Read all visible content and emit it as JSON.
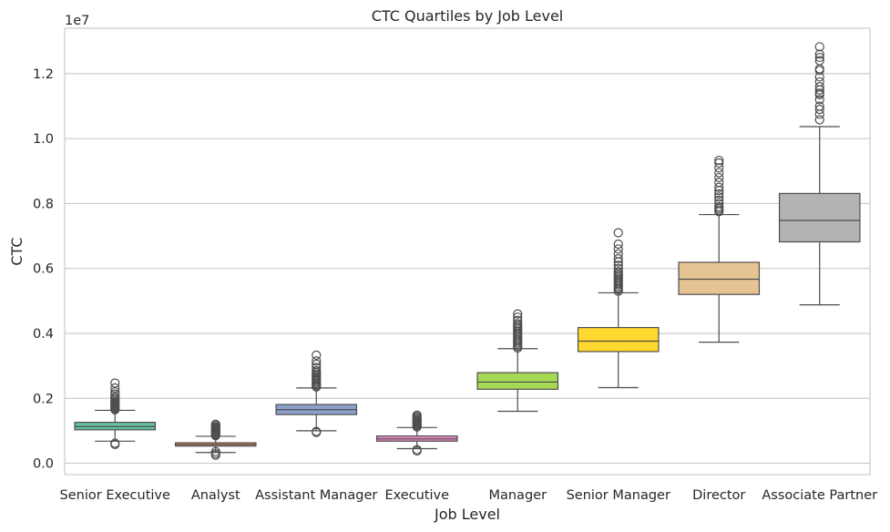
{
  "chart_data": {
    "type": "box",
    "title": "CTC Quartiles by Job Level",
    "xlabel": "Job Level",
    "ylabel": "CTC",
    "y_offset_label": "1e7",
    "y_scale_factor": 10000000,
    "ylim": [
      -0.035,
      1.34
    ],
    "yticks": [
      0.0,
      0.2,
      0.4,
      0.6,
      0.8,
      1.0,
      1.2
    ],
    "ytick_labels": [
      "0.0",
      "0.2",
      "0.4",
      "0.6",
      "0.8",
      "1.0",
      "1.2"
    ],
    "grid": "horizontal",
    "categories": [
      "Senior Executive",
      "Analyst",
      "Assistant Manager",
      "Executive",
      "Manager",
      "Senior Manager",
      "Director",
      "Associate Partner"
    ],
    "boxes": [
      {
        "category": "Senior Executive",
        "color": "#66c2a5",
        "whisker_low": 0.068,
        "q1": 0.103,
        "median": 0.113,
        "q3": 0.126,
        "whisker_high": 0.163,
        "outliers": [
          0.058,
          0.062,
          0.165,
          0.168,
          0.171,
          0.174,
          0.177,
          0.18,
          0.183,
          0.186,
          0.19,
          0.195,
          0.2,
          0.205,
          0.213,
          0.22,
          0.232,
          0.247
        ]
      },
      {
        "category": "Analyst",
        "color": "#fc8d62",
        "whisker_low": 0.033,
        "q1": 0.053,
        "median": 0.058,
        "q3": 0.063,
        "whisker_high": 0.083,
        "outliers": [
          0.025,
          0.03,
          0.036,
          0.085,
          0.088,
          0.091,
          0.094,
          0.097,
          0.1,
          0.103,
          0.106,
          0.109,
          0.112,
          0.116,
          0.12
        ]
      },
      {
        "category": "Assistant Manager",
        "color": "#8da0cb",
        "whisker_low": 0.1,
        "q1": 0.15,
        "median": 0.165,
        "q3": 0.181,
        "whisker_high": 0.232,
        "outliers": [
          0.095,
          0.098,
          0.235,
          0.238,
          0.242,
          0.246,
          0.25,
          0.254,
          0.258,
          0.262,
          0.266,
          0.27,
          0.275,
          0.28,
          0.285,
          0.295,
          0.305,
          0.315,
          0.333
        ]
      },
      {
        "category": "Executive",
        "color": "#e78ac3",
        "whisker_low": 0.045,
        "q1": 0.068,
        "median": 0.075,
        "q3": 0.084,
        "whisker_high": 0.11,
        "outliers": [
          0.038,
          0.042,
          0.112,
          0.115,
          0.118,
          0.121,
          0.124,
          0.127,
          0.13,
          0.133,
          0.136,
          0.14,
          0.144,
          0.148
        ]
      },
      {
        "category": "Manager",
        "color": "#a6d854",
        "whisker_low": 0.16,
        "q1": 0.228,
        "median": 0.25,
        "q3": 0.279,
        "whisker_high": 0.353,
        "outliers": [
          0.355,
          0.36,
          0.365,
          0.37,
          0.375,
          0.38,
          0.385,
          0.39,
          0.395,
          0.4,
          0.405,
          0.41,
          0.415,
          0.42,
          0.425,
          0.43,
          0.44,
          0.45,
          0.46
        ]
      },
      {
        "category": "Senior Manager",
        "color": "#ffd92f",
        "whisker_low": 0.233,
        "q1": 0.344,
        "median": 0.376,
        "q3": 0.418,
        "whisker_high": 0.525,
        "outliers": [
          0.53,
          0.535,
          0.54,
          0.545,
          0.55,
          0.555,
          0.56,
          0.565,
          0.57,
          0.575,
          0.58,
          0.585,
          0.59,
          0.6,
          0.61,
          0.62,
          0.63,
          0.645,
          0.66,
          0.675,
          0.71
        ]
      },
      {
        "category": "Director",
        "color": "#e5c494",
        "whisker_low": 0.373,
        "q1": 0.52,
        "median": 0.567,
        "q3": 0.619,
        "whisker_high": 0.766,
        "outliers": [
          0.775,
          0.78,
          0.785,
          0.79,
          0.8,
          0.81,
          0.82,
          0.83,
          0.84,
          0.85,
          0.865,
          0.88,
          0.895,
          0.91,
          0.925,
          0.933
        ]
      },
      {
        "category": "Associate Partner",
        "color": "#b3b3b3",
        "whisker_low": 0.488,
        "q1": 0.682,
        "median": 0.748,
        "q3": 0.831,
        "whisker_high": 1.037,
        "outliers": [
          1.058,
          1.075,
          1.09,
          1.1,
          1.12,
          1.135,
          1.14,
          1.15,
          1.16,
          1.175,
          1.19,
          1.21,
          1.215,
          1.24,
          1.25,
          1.26,
          1.283
        ]
      }
    ]
  }
}
